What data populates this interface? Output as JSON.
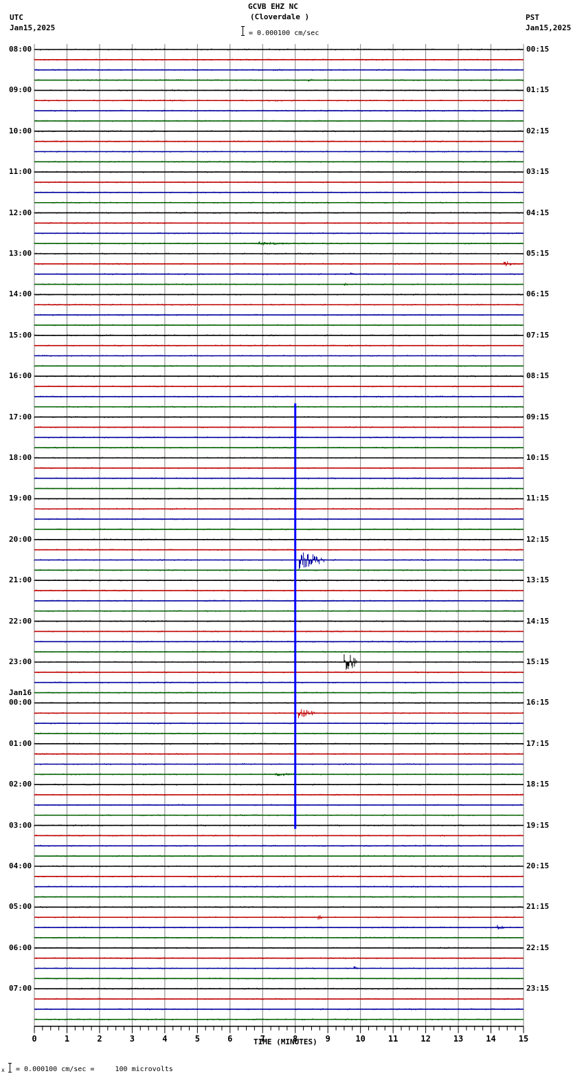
{
  "header": {
    "station": "GCVB EHZ NC",
    "location": "(Cloverdale )",
    "left_tz": "UTC",
    "left_date": "Jan15,2025",
    "right_tz": "PST",
    "right_date": "Jan15,2025",
    "scale_text": "= 0.000100 cm/sec"
  },
  "footer": {
    "scale_text": "= 0.000100 cm/sec =     100 microvolts",
    "prefix": "x"
  },
  "colors": {
    "trace_cycle": [
      "#000000",
      "#c00000",
      "#0000a0",
      "#006000"
    ],
    "grid": "#808080",
    "event_blue": "#0000ff"
  },
  "chart_data": {
    "type": "line",
    "title": "GCVB EHZ NC (Cloverdale )",
    "subtitle": "= 0.000100 cm/sec",
    "xlabel": "TIME (MINUTES)",
    "ylabel": "",
    "xlim": [
      0,
      15
    ],
    "x_ticks": [
      "0",
      "1",
      "2",
      "3",
      "4",
      "5",
      "6",
      "7",
      "8",
      "9",
      "10",
      "11",
      "12",
      "13",
      "14",
      "15"
    ],
    "grid": true,
    "rows_per_hour": 4,
    "row_count": 96,
    "left_labels": [
      "08:00",
      "09:00",
      "10:00",
      "11:00",
      "12:00",
      "13:00",
      "14:00",
      "15:00",
      "16:00",
      "17:00",
      "18:00",
      "19:00",
      "20:00",
      "21:00",
      "22:00",
      "23:00",
      "00:00",
      "01:00",
      "02:00",
      "03:00",
      "04:00",
      "05:00",
      "06:00",
      "07:00"
    ],
    "left_date_change": {
      "label": "Jan16",
      "at_hour_index": 16
    },
    "right_labels": [
      "00:15",
      "01:15",
      "02:15",
      "03:15",
      "04:15",
      "05:15",
      "06:15",
      "07:15",
      "08:15",
      "09:15",
      "10:15",
      "11:15",
      "12:15",
      "13:15",
      "14:15",
      "15:15",
      "16:15",
      "17:15",
      "18:15",
      "19:15",
      "20:15",
      "21:15",
      "22:15",
      "23:15"
    ],
    "events": [
      {
        "row": 3,
        "minute": 8.4,
        "amp": 3,
        "dur": 0.2,
        "desc": "small event"
      },
      {
        "row": 19,
        "minute": 6.8,
        "amp": 3,
        "dur": 1.5,
        "desc": "noise burst"
      },
      {
        "row": 21,
        "minute": 14.4,
        "amp": 5,
        "dur": 0.4,
        "desc": "local event"
      },
      {
        "row": 22,
        "minute": 9.7,
        "amp": 5,
        "dur": 0.1,
        "desc": "spike"
      },
      {
        "row": 23,
        "minute": 9.5,
        "amp": 4,
        "dur": 0.1,
        "desc": "spike"
      },
      {
        "row": 50,
        "minute": 8.1,
        "amp": 14,
        "dur": 0.8,
        "desc": "teleseism coda"
      },
      {
        "row": 60,
        "minute": 9.5,
        "amp": 16,
        "dur": 0.4,
        "desc": "local event"
      },
      {
        "row": 65,
        "minute": 8.1,
        "amp": 8,
        "dur": 0.5,
        "desc": "coda"
      },
      {
        "row": 71,
        "minute": 7.4,
        "amp": 3,
        "dur": 0.8,
        "desc": "noise burst"
      },
      {
        "row": 85,
        "minute": 8.7,
        "amp": 4,
        "dur": 0.2,
        "desc": "small event"
      },
      {
        "row": 86,
        "minute": 14.2,
        "amp": 4,
        "dur": 0.3,
        "desc": "small event"
      },
      {
        "row": 90,
        "minute": 9.8,
        "amp": 3,
        "dur": 0.2,
        "desc": "small event"
      }
    ],
    "vertical_feature": {
      "minute": 8.0,
      "from_row": 35,
      "to_row": 76,
      "color": "#0000ff",
      "desc": "large teleseismic signal clipped across rows"
    }
  }
}
